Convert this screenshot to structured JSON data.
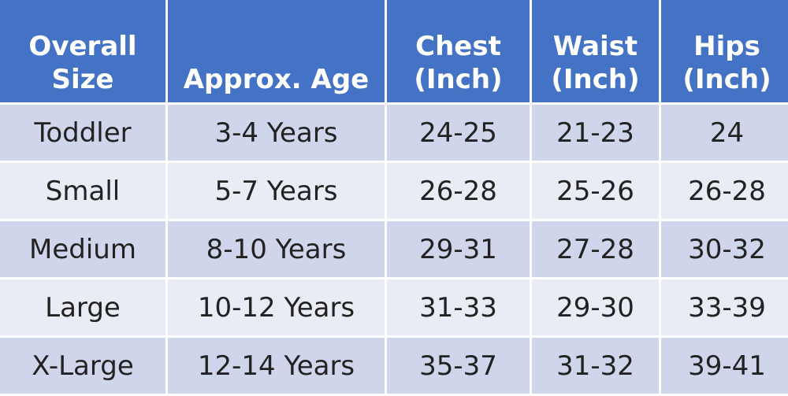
{
  "table": {
    "header": [
      "Overall Size",
      "Approx. Age",
      "Chest (Inch)",
      "Waist (Inch)",
      "Hips (Inch)"
    ],
    "rows": [
      [
        "Toddler",
        "3-4 Years",
        "24-25",
        "21-23",
        "24"
      ],
      [
        "Small",
        "5-7 Years",
        "26-28",
        "25-26",
        "26-28"
      ],
      [
        "Medium",
        "8-10 Years",
        "29-31",
        "27-28",
        "30-32"
      ],
      [
        "Large",
        "10-12 Years",
        "31-33",
        "29-30",
        "33-39"
      ],
      [
        "X-Large",
        "12-14 Years",
        "35-37",
        "31-32",
        "39-41"
      ]
    ]
  }
}
